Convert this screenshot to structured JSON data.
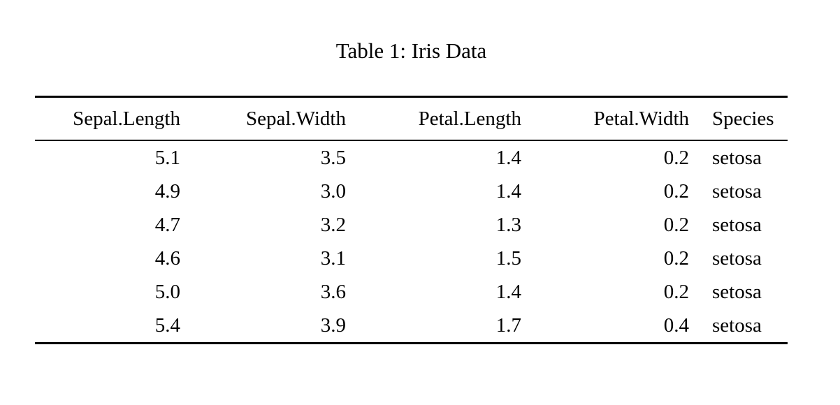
{
  "caption": "Table 1: Iris Data",
  "table": {
    "columns": [
      "Sepal.Length",
      "Sepal.Width",
      "Petal.Length",
      "Petal.Width",
      "Species"
    ],
    "rows": [
      [
        "5.1",
        "3.5",
        "1.4",
        "0.2",
        "setosa"
      ],
      [
        "4.9",
        "3.0",
        "1.4",
        "0.2",
        "setosa"
      ],
      [
        "4.7",
        "3.2",
        "1.3",
        "0.2",
        "setosa"
      ],
      [
        "4.6",
        "3.1",
        "1.5",
        "0.2",
        "setosa"
      ],
      [
        "5.0",
        "3.6",
        "1.4",
        "0.2",
        "setosa"
      ],
      [
        "5.4",
        "3.9",
        "1.7",
        "0.4",
        "setosa"
      ]
    ]
  },
  "chart_data": {
    "type": "table",
    "title": "Table 1: Iris Data",
    "columns": [
      "Sepal.Length",
      "Sepal.Width",
      "Petal.Length",
      "Petal.Width",
      "Species"
    ],
    "rows": [
      [
        5.1,
        3.5,
        1.4,
        0.2,
        "setosa"
      ],
      [
        4.9,
        3.0,
        1.4,
        0.2,
        "setosa"
      ],
      [
        4.7,
        3.2,
        1.3,
        0.2,
        "setosa"
      ],
      [
        4.6,
        3.1,
        1.5,
        0.2,
        "setosa"
      ],
      [
        5.0,
        3.6,
        1.4,
        0.2,
        "setosa"
      ],
      [
        5.4,
        3.9,
        1.7,
        0.4,
        "setosa"
      ]
    ]
  },
  "colors": {
    "text": "#000000",
    "background": "#ffffff",
    "rule": "#000000"
  }
}
